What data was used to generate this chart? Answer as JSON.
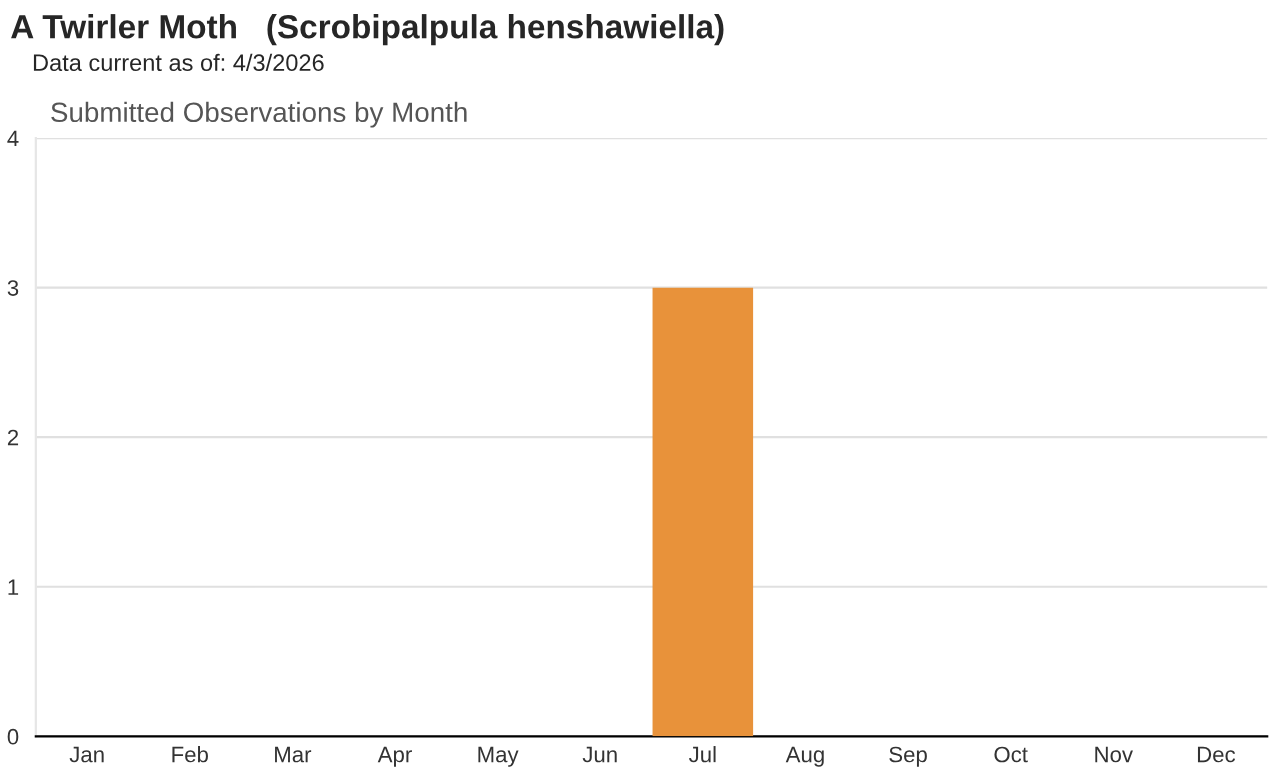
{
  "chart_data": {
    "type": "bar",
    "title": "A Twirler Moth   (Scrobipalpula henshawiella)",
    "subtitle": "Data current as of: 4/3/2026",
    "annotations": [
      "Submitted Observations by Month"
    ],
    "categories": [
      "Jan",
      "Feb",
      "Mar",
      "Apr",
      "May",
      "Jun",
      "Jul",
      "Aug",
      "Sep",
      "Oct",
      "Nov",
      "Dec"
    ],
    "values": [
      0,
      0,
      0,
      0,
      0,
      0,
      3,
      0,
      0,
      0,
      0,
      0
    ],
    "color": "#e8923a",
    "ylim": [
      0,
      4
    ],
    "yticks": [
      0,
      1,
      2,
      3,
      4
    ],
    "grid": "y"
  }
}
